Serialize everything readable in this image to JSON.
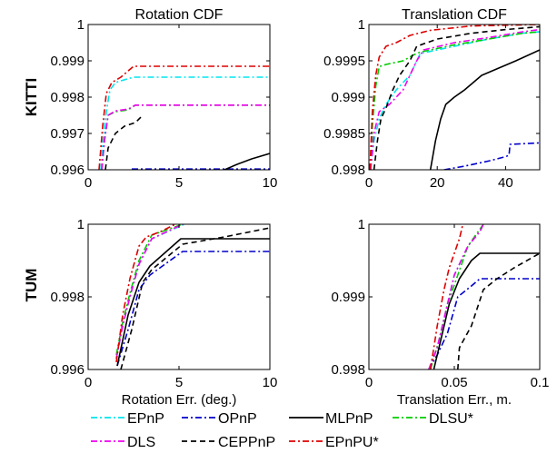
{
  "row_labels": [
    "KITTI",
    "TUM"
  ],
  "legend": {
    "entries": [
      {
        "name": "EPnP",
        "color": "#00e5ee",
        "dash": "dashdot"
      },
      {
        "name": "OPnP",
        "color": "#0000cc",
        "dash": "dashdot"
      },
      {
        "name": "MLPnP",
        "color": "#000000",
        "dash": "solid"
      },
      {
        "name": "DLSU*",
        "color": "#00cc00",
        "dash": "dashdot"
      },
      {
        "name": "DLS",
        "color": "#ee00ee",
        "dash": "dashdot"
      },
      {
        "name": "CEPPnP",
        "color": "#000000",
        "dash": "dashed"
      },
      {
        "name": "EPnPU*",
        "color": "#dd0000",
        "dash": "dashdot"
      }
    ]
  },
  "chart_data": [
    {
      "type": "line",
      "title": "Rotation CDF",
      "xlabel": "",
      "ylabel": "",
      "xlim": [
        0,
        10
      ],
      "ylim": [
        0.996,
        1
      ],
      "xticks": [
        "0",
        "5",
        "10"
      ],
      "yticks": [
        "0.996",
        "0.997",
        "0.998",
        "0.999",
        "1"
      ],
      "series": [
        {
          "name": "EPnP",
          "x": [
            0.7,
            0.8,
            1.0,
            1.2,
            1.5,
            1.8,
            2.5,
            10
          ],
          "y": [
            0.996,
            0.9967,
            0.9976,
            0.9982,
            0.9984,
            0.99845,
            0.99855,
            0.99855
          ]
        },
        {
          "name": "OPnP",
          "x": [
            2.4,
            5,
            10
          ],
          "y": [
            0.99602,
            0.99602,
            0.99602
          ]
        },
        {
          "name": "MLPnP",
          "x": [
            7.5,
            8.2,
            9.0,
            10
          ],
          "y": [
            0.996,
            0.99615,
            0.9963,
            0.99645
          ]
        },
        {
          "name": "DLSU*",
          "x": [
            0.75,
            0.9,
            1.1,
            1.5,
            2.2,
            2.6,
            10
          ],
          "y": [
            0.996,
            0.9968,
            0.9975,
            0.9976,
            0.99765,
            0.99778,
            0.99778
          ]
        },
        {
          "name": "DLS",
          "x": [
            0.75,
            0.9,
            1.1,
            1.5,
            2.2,
            2.6,
            10
          ],
          "y": [
            0.996,
            0.9968,
            0.9975,
            0.99762,
            0.99767,
            0.99778,
            0.99778
          ]
        },
        {
          "name": "CEPPnP",
          "x": [
            0.95,
            1.1,
            1.5,
            2.0,
            2.6,
            3.0
          ],
          "y": [
            0.996,
            0.9966,
            0.997,
            0.9972,
            0.9973,
            0.9975
          ]
        },
        {
          "name": "EPnPU*",
          "x": [
            0.6,
            0.8,
            1.0,
            1.3,
            1.8,
            2.5,
            10
          ],
          "y": [
            0.996,
            0.9972,
            0.9981,
            0.9984,
            0.99855,
            0.99885,
            0.99885
          ]
        }
      ]
    },
    {
      "type": "line",
      "title": "Translation CDF",
      "xlabel": "",
      "ylabel": "",
      "xlim": [
        0,
        50
      ],
      "ylim": [
        0.998,
        1
      ],
      "xticks": [
        "0",
        "20",
        "40"
      ],
      "yticks": [
        "0.998",
        "0.9985",
        "0.999",
        "0.9995",
        "1"
      ],
      "series": [
        {
          "name": "EPnP",
          "x": [
            0.5,
            1.5,
            3,
            5,
            8,
            12,
            15,
            25,
            35,
            45,
            50
          ],
          "y": [
            0.998,
            0.9984,
            0.9987,
            0.9989,
            0.9991,
            0.9993,
            0.9996,
            0.9997,
            0.9998,
            0.99988,
            0.9999
          ]
        },
        {
          "name": "OPnP",
          "x": [
            22,
            28,
            35,
            40,
            41,
            41.3,
            50
          ],
          "y": [
            0.998,
            0.99805,
            0.99812,
            0.99818,
            0.9982,
            0.99835,
            0.99837
          ]
        },
        {
          "name": "MLPnP",
          "x": [
            18,
            19.5,
            21,
            22.5,
            25,
            28,
            33,
            38,
            43,
            50
          ],
          "y": [
            0.998,
            0.9984,
            0.9987,
            0.9989,
            0.999,
            0.9991,
            0.9993,
            0.9994,
            0.9995,
            0.99965
          ]
        },
        {
          "name": "DLSU*",
          "x": [
            0.5,
            1.0,
            2.0,
            3.0,
            5,
            10,
            13,
            15,
            25,
            35,
            45,
            50
          ],
          "y": [
            0.998,
            0.9986,
            0.99915,
            0.99942,
            0.99945,
            0.9995,
            0.99958,
            0.99962,
            0.99972,
            0.9998,
            0.99988,
            0.9999
          ]
        },
        {
          "name": "DLS",
          "x": [
            0.5,
            1.5,
            3,
            6,
            10,
            14,
            16,
            25,
            35,
            45,
            50
          ],
          "y": [
            0.998,
            0.9985,
            0.9988,
            0.9989,
            0.9991,
            0.9995,
            0.99965,
            0.99975,
            0.99982,
            0.9999,
            0.99993
          ]
        },
        {
          "name": "CEPPnP",
          "x": [
            1.5,
            2.5,
            3.5,
            5,
            7,
            9,
            12,
            14,
            20,
            30,
            40,
            50
          ],
          "y": [
            0.998,
            0.9984,
            0.9987,
            0.99885,
            0.9991,
            0.9993,
            0.9995,
            0.9997,
            0.9998,
            0.99988,
            0.99993,
            0.99997
          ]
        },
        {
          "name": "EPnPU*",
          "x": [
            0.3,
            1.0,
            2.0,
            3.0,
            5,
            8,
            12,
            18,
            30,
            50
          ],
          "y": [
            0.998,
            0.9988,
            0.9993,
            0.99955,
            0.9997,
            0.99975,
            0.99985,
            0.99992,
            0.99998,
            1.0
          ]
        }
      ]
    },
    {
      "type": "line",
      "title": "",
      "xlabel": "Rotation Err. (deg.)",
      "ylabel": "",
      "xlim": [
        0,
        10
      ],
      "ylim": [
        0.996,
        1
      ],
      "xticks": [
        "0",
        "5",
        "10"
      ],
      "yticks": [
        "0.996",
        "0.998",
        "1"
      ],
      "series": [
        {
          "name": "EPnP",
          "x": [
            1.55,
            1.9,
            2.3,
            2.8,
            3.5,
            5.3
          ],
          "y": [
            0.9963,
            0.9972,
            0.998,
            0.9989,
            0.9996,
            1.0
          ]
        },
        {
          "name": "OPnP",
          "x": [
            1.6,
            2.2,
            2.8,
            3.4,
            5.2,
            10
          ],
          "y": [
            0.9961,
            0.9971,
            0.9982,
            0.9986,
            0.99925,
            0.99925
          ]
        },
        {
          "name": "MLPnP",
          "x": [
            1.6,
            2.2,
            2.8,
            3.4,
            5.1,
            10
          ],
          "y": [
            0.9961,
            0.9975,
            0.9984,
            0.99885,
            0.9996,
            0.9996
          ]
        },
        {
          "name": "DLSU*",
          "x": [
            1.55,
            1.9,
            2.3,
            2.8,
            3.5,
            5.2
          ],
          "y": [
            0.9964,
            0.9973,
            0.9981,
            0.999,
            0.9997,
            1.0
          ]
        },
        {
          "name": "DLS",
          "x": [
            1.55,
            1.9,
            2.3,
            2.8,
            3.5,
            5.2
          ],
          "y": [
            0.9963,
            0.9972,
            0.998,
            0.9989,
            0.9996,
            1.0
          ]
        },
        {
          "name": "CEPPnP",
          "x": [
            1.8,
            2.4,
            3.0,
            3.5,
            5.2,
            7.5,
            10
          ],
          "y": [
            0.996,
            0.9971,
            0.9984,
            0.99875,
            0.99945,
            0.99965,
            0.9999
          ]
        },
        {
          "name": "EPnPU*",
          "x": [
            1.55,
            1.9,
            2.3,
            2.8,
            3.2,
            4.0,
            4.8
          ],
          "y": [
            0.9962,
            0.9975,
            0.9985,
            0.9994,
            0.99965,
            0.9998,
            1.0
          ]
        }
      ]
    },
    {
      "type": "line",
      "title": "",
      "xlabel": "Translation Err., m.",
      "ylabel": "",
      "xlim": [
        0,
        0.1
      ],
      "ylim": [
        0.998,
        1
      ],
      "xticks": [
        "0",
        "0.05",
        "0.1"
      ],
      "yticks": [
        "0.998",
        "0.999",
        "1"
      ],
      "series": [
        {
          "name": "EPnP",
          "x": [
            0.035,
            0.04,
            0.045,
            0.05,
            0.058,
            0.065,
            0.067
          ],
          "y": [
            0.998,
            0.9983,
            0.9988,
            0.9993,
            0.9997,
            0.9999,
            1.0
          ]
        },
        {
          "name": "OPnP",
          "x": [
            0.035,
            0.04,
            0.046,
            0.052,
            0.06,
            0.065,
            0.1
          ],
          "y": [
            0.998,
            0.9982,
            0.9985,
            0.999,
            0.99915,
            0.99925,
            0.99925
          ]
        },
        {
          "name": "MLPnP",
          "x": [
            0.038,
            0.042,
            0.047,
            0.053,
            0.06,
            0.065,
            0.1
          ],
          "y": [
            0.998,
            0.9984,
            0.9989,
            0.99925,
            0.9995,
            0.9996,
            0.9996
          ]
        },
        {
          "name": "DLSU*",
          "x": [
            0.036,
            0.041,
            0.046,
            0.052,
            0.058,
            0.064,
            0.067
          ],
          "y": [
            0.998,
            0.9984,
            0.9989,
            0.9993,
            0.9997,
            0.9999,
            1.0
          ]
        },
        {
          "name": "DLS",
          "x": [
            0.035,
            0.04,
            0.045,
            0.05,
            0.058,
            0.065,
            0.067
          ],
          "y": [
            0.998,
            0.9983,
            0.9988,
            0.9993,
            0.9997,
            0.9999,
            1.0
          ]
        },
        {
          "name": "CEPPnP",
          "x": [
            0.052,
            0.053,
            0.06,
            0.067,
            0.075,
            0.085,
            0.1
          ],
          "y": [
            0.998,
            0.9983,
            0.9986,
            0.9991,
            0.99925,
            0.9994,
            0.9996
          ]
        },
        {
          "name": "EPnPU*",
          "x": [
            0.036,
            0.04,
            0.044,
            0.047,
            0.05,
            0.053,
            0.055
          ],
          "y": [
            0.998,
            0.9986,
            0.9991,
            0.9994,
            0.9996,
            0.9998,
            1.0
          ]
        }
      ]
    }
  ]
}
